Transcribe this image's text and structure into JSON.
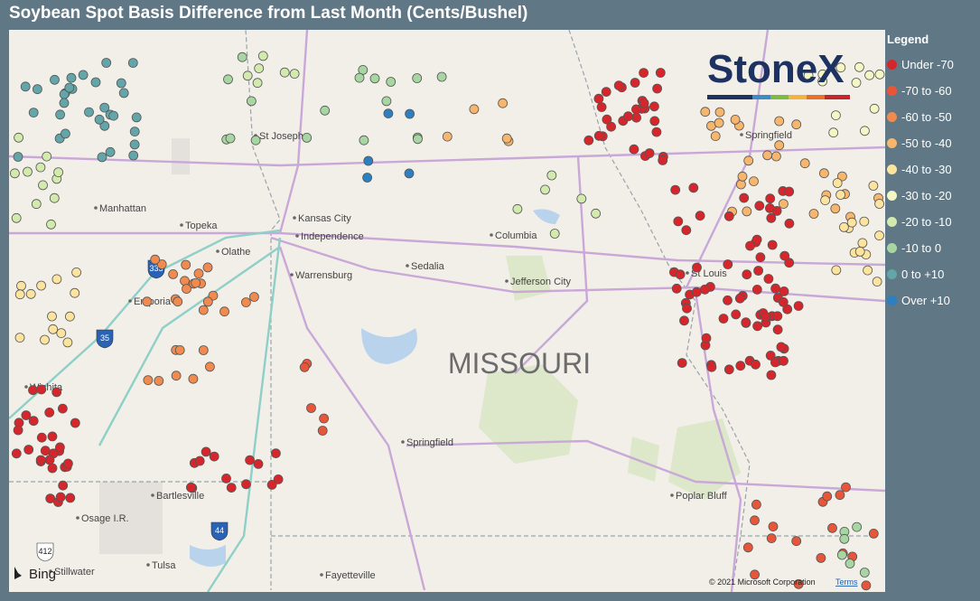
{
  "header": {
    "title": "Soybean Spot Basis Difference from Last Month (Cents/Bushel)"
  },
  "legend": {
    "title": "Legend",
    "items": [
      {
        "label": "Under -70",
        "color": "#d7262b"
      },
      {
        "label": "-70 to -60",
        "color": "#e8563a"
      },
      {
        "label": "-60 to -50",
        "color": "#f08a4e"
      },
      {
        "label": "-50 to -40",
        "color": "#f6b66d"
      },
      {
        "label": "-40 to -30",
        "color": "#fde49e"
      },
      {
        "label": "-30 to -20",
        "color": "#f4f7c4"
      },
      {
        "label": "-20 to -10",
        "color": "#d3eaae"
      },
      {
        "label": "-10 to 0",
        "color": "#a7d6a2"
      },
      {
        "label": "0 to +10",
        "color": "#63a6a9"
      },
      {
        "label": "Over +10",
        "color": "#2c7fc0"
      }
    ]
  },
  "map": {
    "state_label": "MISSOURI",
    "cities": [
      "St Joseph",
      "Manhattan",
      "Topeka",
      "Kansas City",
      "Independence",
      "Olathe",
      "Warrensburg",
      "Sedalia",
      "Columbia",
      "Jefferson City",
      "Emporia",
      "Wichita",
      "Springfield",
      "Bartlesville",
      "Osage I.R.",
      "Poplar Bluff",
      "Tulsa",
      "Stillwater",
      "Fayetteville",
      "St Louis",
      "Springfield"
    ],
    "highway_shields": [
      "35",
      "335",
      "44",
      "412"
    ]
  },
  "logo": "StoneX",
  "attribution": {
    "provider": "Bing",
    "copyright": "© 2021 Microsoft Corporation",
    "terms": "Terms"
  }
}
